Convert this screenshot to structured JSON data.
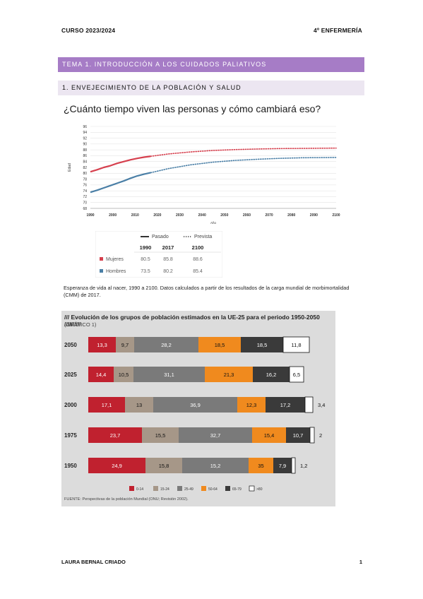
{
  "header": {
    "course": "CURSO 2023/2024",
    "program": "4º ENFERMERÍA"
  },
  "tema": "TEMA 1. INTRODUCCIÓN A LOS CUIDADOS PALIATIVOS",
  "section": "1. ENVEJECIMIENTO DE LA POBLACIÓN Y SALUD",
  "question": "¿Cuánto tiempo viven las personas y cómo cambiará eso?",
  "caption": "Esperanza de vida al nacer, 1990 a 2100. Datos calculados a partir de los resultados de la carga mundial de morbimortalidad (CMM) de 2017.",
  "footer": {
    "author": "LAURA BERNAL CRIADO",
    "page": "1"
  },
  "chart_data": [
    {
      "type": "line",
      "ylabel": "Edad",
      "xlabel": "Año",
      "xlim": [
        1990,
        2100
      ],
      "ylim": [
        68,
        96
      ],
      "xticks": [
        1990,
        2000,
        2010,
        2020,
        2030,
        2040,
        2050,
        2060,
        2070,
        2080,
        2090,
        2100
      ],
      "yticks": [
        68,
        70,
        72,
        74,
        76,
        78,
        80,
        82,
        84,
        86,
        88,
        90,
        92,
        94,
        96
      ],
      "grid": true,
      "legend": {
        "pasado": "Pasado",
        "prevista": "Prevista"
      },
      "table": {
        "headers": [
          "1990",
          "2017",
          "2100"
        ],
        "rows": [
          {
            "label": "Mujeres",
            "values": [
              "80.5",
              "85.8",
              "88.6"
            ],
            "color": "#d6404e"
          },
          {
            "label": "Hombres",
            "values": [
              "73.5",
              "80.2",
              "85.4"
            ],
            "color": "#4a7fa6"
          }
        ]
      },
      "series": [
        {
          "name": "Mujeres",
          "color": "#d6404e",
          "past": [
            [
              1990,
              80.5
            ],
            [
              1993,
              81.2
            ],
            [
              1996,
              82.0
            ],
            [
              1999,
              82.6
            ],
            [
              2002,
              83.4
            ],
            [
              2005,
              84.0
            ],
            [
              2008,
              84.6
            ],
            [
              2011,
              85.1
            ],
            [
              2014,
              85.5
            ],
            [
              2017,
              85.8
            ]
          ],
          "forecast": [
            [
              2017,
              85.8
            ],
            [
              2025,
              86.6
            ],
            [
              2035,
              87.3
            ],
            [
              2045,
              87.8
            ],
            [
              2055,
              88.1
            ],
            [
              2065,
              88.3
            ],
            [
              2075,
              88.45
            ],
            [
              2085,
              88.5
            ],
            [
              2100,
              88.6
            ]
          ]
        },
        {
          "name": "Hombres",
          "color": "#4a7fa6",
          "past": [
            [
              1990,
              73.5
            ],
            [
              1993,
              74.2
            ],
            [
              1996,
              75.0
            ],
            [
              1999,
              75.8
            ],
            [
              2002,
              76.6
            ],
            [
              2005,
              77.4
            ],
            [
              2008,
              78.3
            ],
            [
              2011,
              79.1
            ],
            [
              2014,
              79.7
            ],
            [
              2017,
              80.2
            ]
          ],
          "forecast": [
            [
              2017,
              80.2
            ],
            [
              2025,
              81.6
            ],
            [
              2035,
              82.9
            ],
            [
              2045,
              83.8
            ],
            [
              2055,
              84.4
            ],
            [
              2065,
              84.8
            ],
            [
              2075,
              85.1
            ],
            [
              2085,
              85.3
            ],
            [
              2100,
              85.4
            ]
          ]
        }
      ]
    },
    {
      "type": "bar",
      "title": "/// Evolución de los grupos de población estimados en la UE-25 para el periodo 1950-2050 //////////",
      "subtitle": "(GRÁFICO 1)",
      "source": "FUENTE: Perspectivas de la población Mundial (ONU; Revisión 2002).",
      "categories": [
        "2050",
        "2025",
        "2000",
        "1975",
        "1950"
      ],
      "series": [
        {
          "name": "0-14",
          "color": "#c0212f",
          "values": [
            "13,3",
            "14,4",
            "17,1",
            "23,7",
            "24,9"
          ]
        },
        {
          "name": "15-24",
          "color": "#a69788",
          "values": [
            "9,7",
            "10,5",
            "13",
            "15,5",
            "15,8"
          ]
        },
        {
          "name": "25-49",
          "color": "#7a7a7a",
          "values": [
            "28,2",
            "31,1",
            "36,9",
            "32,7",
            "15,2"
          ]
        },
        {
          "name": "50-64",
          "color": "#f08a1e",
          "values": [
            "18,5",
            "21,3",
            "12,3",
            "15,4",
            "35"
          ]
        },
        {
          "name": "65-79",
          "color": "#3a3a3a",
          "values": [
            "18,5",
            "16,2",
            "17,2",
            "10,7",
            "7,9"
          ]
        },
        {
          "name": ">80",
          "color": "#ffffff",
          "values": [
            "11,8",
            "6,5",
            "3,4",
            "2",
            "1,2"
          ]
        }
      ],
      "widths": [
        [
          39,
          26,
          91,
          60,
          60,
          37
        ],
        [
          36,
          28,
          101,
          68,
          52,
          20
        ],
        [
          52,
          40,
          119,
          40,
          56,
          11
        ],
        [
          76,
          52,
          104,
          48,
          34,
          6
        ],
        [
          81,
          52,
          94,
          35,
          26,
          5
        ]
      ]
    }
  ]
}
